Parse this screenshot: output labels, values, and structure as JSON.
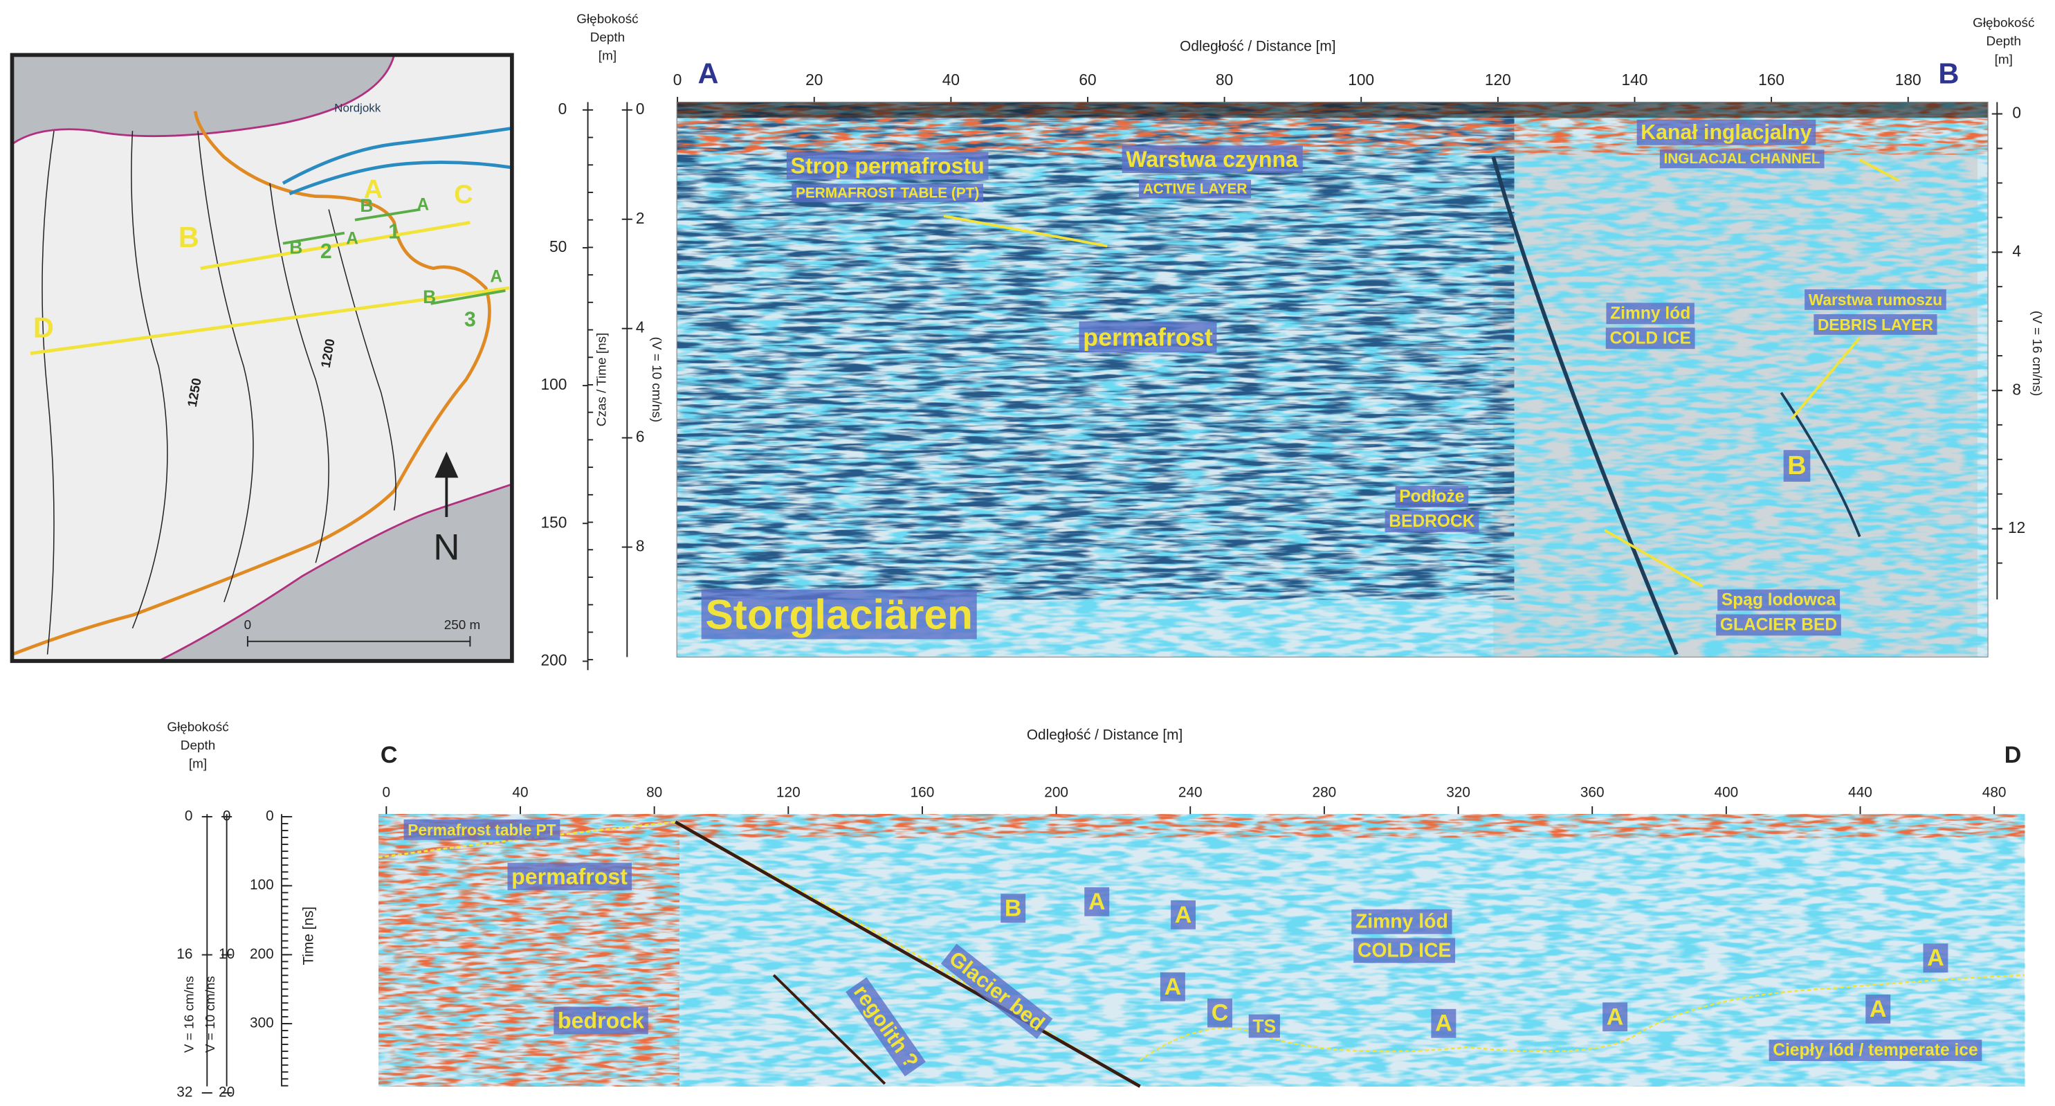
{
  "map": {
    "labels": [
      "Nordjokk",
      "A",
      "C",
      "B",
      "D",
      "B",
      "A",
      "1",
      "B",
      "2",
      "A",
      "B",
      "A",
      "3",
      "1250",
      "1200",
      "0",
      "250 m",
      "N"
    ]
  },
  "profile_ab": {
    "x_axis_title": "Odległość / Distance [m]",
    "x_ticks": [
      "0",
      "20",
      "40",
      "60",
      "80",
      "100",
      "120",
      "140",
      "160",
      "180"
    ],
    "start_label": "A",
    "end_label": "B",
    "left_depth_title": [
      "Głębokość",
      "Depth",
      "[m]"
    ],
    "right_depth_title": [
      "Głębokość",
      "Depth",
      "[m]"
    ],
    "time_ticks": [
      "0",
      "50",
      "100",
      "150",
      "200"
    ],
    "time_axis_title": "Czas / Time [ns]",
    "left_depth_ticks": [
      "0",
      "2",
      "4",
      "6",
      "8"
    ],
    "left_velocity": "(V = 10 cm/ns)",
    "right_depth_ticks": [
      "0",
      "4",
      "8",
      "12"
    ],
    "right_velocity": "(V = 16 cm/ns)",
    "annotations": [
      "Strop permafrostu",
      "PERMAFROST TABLE (PT)",
      "Warstwa czynna",
      "ACTIVE LAYER",
      "permafrost",
      "Kanał inglacjalny",
      "INGLACJAL CHANNEL",
      "Zimny lód",
      "COLD ICE",
      "Warstwa rumoszu",
      "DEBRIS LAYER",
      "B",
      "Podłoże",
      "BEDROCK",
      "Spąg lodowca",
      "GLACIER BED",
      "Storglaciären"
    ]
  },
  "profile_cd": {
    "x_axis_title": "Odległość / Distance [m]",
    "x_ticks": [
      "0",
      "40",
      "80",
      "120",
      "160",
      "200",
      "240",
      "280",
      "320",
      "360",
      "400",
      "440",
      "480"
    ],
    "start_label": "C",
    "end_label": "D",
    "depth_title": [
      "Głębokość",
      "Depth",
      "[m]"
    ],
    "depth_ticks": [
      "0",
      "16",
      "32"
    ],
    "depth_velocity": "V = 16 cm/ns",
    "time_ticks_a": [
      "0",
      "10",
      "20"
    ],
    "time_velocity": "V = 10 cm/ns",
    "time_ticks_b": [
      "0",
      "100",
      "200",
      "300"
    ],
    "time_axis_title": "Time [ns]",
    "annotations": [
      "Permafrost table PT",
      "permafrost",
      "bedrock",
      "regolith ?",
      "Glacier bed",
      "B",
      "A",
      "A",
      "A",
      "C",
      "TS",
      "Zimny lód",
      "COLD ICE",
      "A",
      "A",
      "A",
      "A",
      "Ciepły lód / temperate ice"
    ]
  }
}
